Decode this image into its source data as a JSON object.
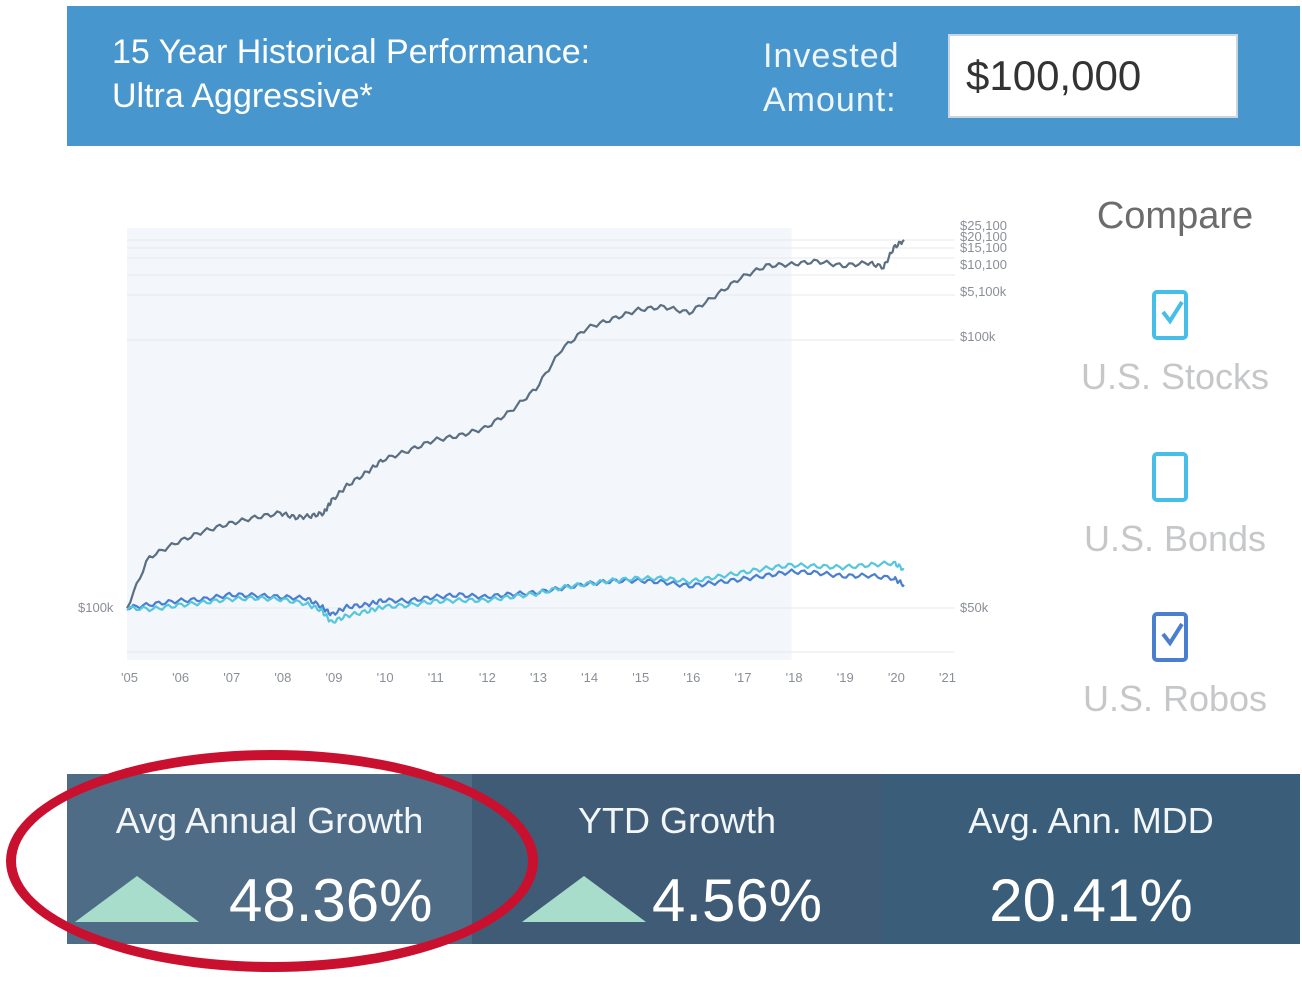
{
  "header": {
    "title_line1": "15 Year Historical Performance:",
    "title_line2": "Ultra Aggressive*",
    "invested_label_line1": "Invested",
    "invested_label_line2": "Amount:",
    "invested_value": "$100,000"
  },
  "chart_data": {
    "type": "line",
    "x_ticks": [
      "'05",
      "'06",
      "'07",
      "'08",
      "'09",
      "'10",
      "'11",
      "'12",
      "'13",
      "'14",
      "'15",
      "'16",
      "'17",
      "'18",
      "'19",
      "'20",
      "'21"
    ],
    "left_tick": "$100k",
    "right_ticks": [
      "$25,100",
      "$20,100",
      "$15,100",
      "$10,100",
      "$5,100k",
      "$100k",
      "$50k"
    ],
    "series": [
      {
        "color": "#5b6f82",
        "x": [
          2005.0,
          2005.5,
          2006.0,
          2006.5,
          2007.0,
          2007.5,
          2008.0,
          2008.3,
          2008.6,
          2008.85,
          2009.0,
          2009.3,
          2009.7,
          2010.0,
          2010.5,
          2011.0,
          2011.5,
          2012.0,
          2012.5,
          2013.0,
          2013.5,
          2014.0,
          2014.5,
          2015.0,
          2015.5,
          2016.0,
          2016.5,
          2017.0,
          2017.5,
          2018.0,
          2018.5,
          2019.0,
          2019.5,
          2019.8,
          2020.0,
          2020.2
        ],
        "y": [
          100,
          1200,
          2100,
          2800,
          3300,
          3700,
          4000,
          3700,
          3800,
          4000,
          4800,
          5800,
          6700,
          7500,
          8100,
          8800,
          9100,
          9600,
          10700,
          12200,
          14800,
          16200,
          16800,
          17400,
          17600,
          17200,
          18300,
          19500,
          20300,
          20400,
          20600,
          20300,
          20500,
          20200,
          21500,
          22000
        ]
      },
      {
        "color": "#4a7fcf",
        "x": [
          2005.0,
          2005.5,
          2006.0,
          2006.5,
          2007.0,
          2007.5,
          2008.0,
          2008.5,
          2008.8,
          2009.0,
          2009.3,
          2009.7,
          2010.0,
          2010.5,
          2011.0,
          2011.5,
          2012.0,
          2012.5,
          2013.0,
          2013.5,
          2014.0,
          2014.5,
          2015.0,
          2015.5,
          2016.0,
          2016.5,
          2017.0,
          2017.5,
          2018.0,
          2018.5,
          2019.0,
          2019.5,
          2020.0,
          2020.2
        ],
        "y": [
          100,
          170,
          230,
          260,
          340,
          330,
          300,
          280,
          130,
          -20,
          120,
          160,
          240,
          230,
          300,
          340,
          300,
          350,
          380,
          460,
          540,
          590,
          600,
          570,
          500,
          560,
          620,
          690,
          760,
          740,
          680,
          690,
          640,
          520
        ]
      },
      {
        "color": "#55c6dd",
        "x": [
          2005.0,
          2005.5,
          2006.0,
          2006.5,
          2007.0,
          2007.5,
          2008.0,
          2008.5,
          2008.8,
          2009.0,
          2009.3,
          2009.7,
          2010.0,
          2010.5,
          2011.0,
          2011.5,
          2012.0,
          2012.5,
          2013.0,
          2013.5,
          2014.0,
          2014.5,
          2015.0,
          2015.5,
          2016.0,
          2016.5,
          2017.0,
          2017.5,
          2018.0,
          2018.5,
          2019.0,
          2019.5,
          2020.0,
          2020.2
        ],
        "y": [
          100,
          80,
          150,
          200,
          260,
          280,
          260,
          180,
          60,
          -160,
          -40,
          40,
          120,
          150,
          220,
          240,
          240,
          300,
          360,
          470,
          540,
          600,
          640,
          640,
          580,
          660,
          740,
          820,
          880,
          860,
          840,
          880,
          920,
          800
        ]
      }
    ],
    "shaded_region_x": [
      2005.0,
      2018.0
    ],
    "xlim": [
      2005.0,
      2021.0
    ]
  },
  "compare": {
    "title": "Compare",
    "items": [
      {
        "label": "U.S. Stocks",
        "checked": true
      },
      {
        "label": "U.S. Bonds",
        "checked": false
      },
      {
        "label": "U.S. Robos",
        "checked": true
      }
    ]
  },
  "stats": {
    "avg_annual_growth_label": "Avg Annual Growth",
    "avg_annual_growth_value": "48.36%",
    "ytd_growth_label": "YTD Growth",
    "ytd_growth_value": "4.56%",
    "mdd_label": "Avg. Ann. MDD",
    "mdd_value": "20.41%"
  },
  "colors": {
    "header_bg": "#4896ce",
    "up_arrow": "#a8ddcc",
    "highlight": "#c9102f"
  }
}
